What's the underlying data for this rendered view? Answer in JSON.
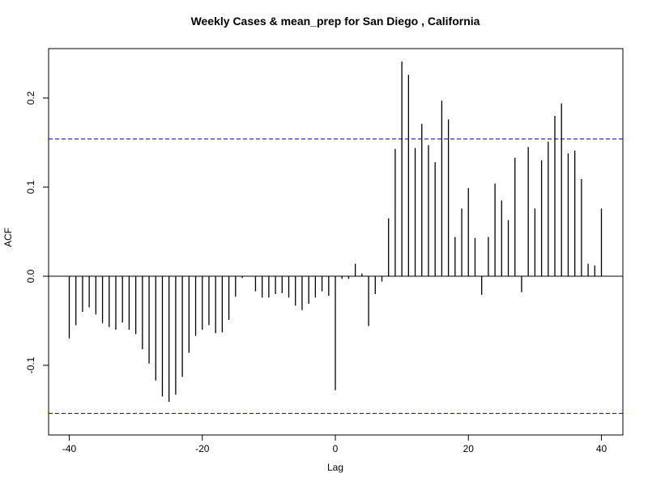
{
  "chart_data": {
    "type": "bar",
    "title": "Weekly Cases & mean_prep for San Diego , California",
    "xlabel": "Lag",
    "ylabel": "ACF",
    "xlim": [
      -40,
      40
    ],
    "ylim": [
      -0.16,
      0.24
    ],
    "x_ticks": [
      -40,
      -20,
      0,
      20,
      40
    ],
    "x_tick_labels": [
      "-40",
      "-20",
      "0",
      "20",
      "40"
    ],
    "y_ticks": [
      -0.1,
      0.0,
      0.1,
      0.2
    ],
    "y_tick_labels": [
      "-0.1",
      "0.0",
      "0.1",
      "0.2"
    ],
    "confidence_limit": 0.154,
    "confidence_color": "#0000cc",
    "bar_color": "#000000",
    "lags": [
      -40,
      -39,
      -38,
      -37,
      -36,
      -35,
      -34,
      -33,
      -32,
      -31,
      -30,
      -29,
      -28,
      -27,
      -26,
      -25,
      -24,
      -23,
      -22,
      -21,
      -20,
      -19,
      -18,
      -17,
      -16,
      -15,
      -14,
      -13,
      -12,
      -11,
      -10,
      -9,
      -8,
      -7,
      -6,
      -5,
      -4,
      -3,
      -2,
      -1,
      0,
      1,
      2,
      3,
      4,
      5,
      6,
      7,
      8,
      9,
      10,
      11,
      12,
      13,
      14,
      15,
      16,
      17,
      18,
      19,
      20,
      21,
      22,
      23,
      24,
      25,
      26,
      27,
      28,
      29,
      30,
      31,
      32,
      33,
      34,
      35,
      36,
      37,
      38,
      39,
      40
    ],
    "acf": [
      -0.07,
      -0.055,
      -0.04,
      -0.035,
      -0.043,
      -0.053,
      -0.057,
      -0.06,
      -0.052,
      -0.06,
      -0.065,
      -0.082,
      -0.098,
      -0.117,
      -0.135,
      -0.141,
      -0.133,
      -0.113,
      -0.086,
      -0.067,
      -0.06,
      -0.055,
      -0.064,
      -0.063,
      -0.049,
      -0.023,
      -0.002,
      0.0,
      -0.017,
      -0.024,
      -0.024,
      -0.02,
      -0.019,
      -0.024,
      -0.033,
      -0.038,
      -0.031,
      -0.024,
      -0.017,
      -0.022,
      -0.128,
      -0.003,
      -0.003,
      0.014,
      0.003,
      -0.056,
      -0.02,
      -0.006,
      0.065,
      0.143,
      0.241,
      0.226,
      0.144,
      0.171,
      0.147,
      0.128,
      0.197,
      0.176,
      0.044,
      0.076,
      0.099,
      0.043,
      -0.021,
      0.044,
      0.104,
      0.085,
      0.063,
      0.133,
      -0.018,
      0.145,
      0.076,
      0.13,
      0.151,
      0.18,
      0.194,
      0.138,
      0.141,
      0.109,
      0.014,
      0.012,
      0.076
    ]
  }
}
